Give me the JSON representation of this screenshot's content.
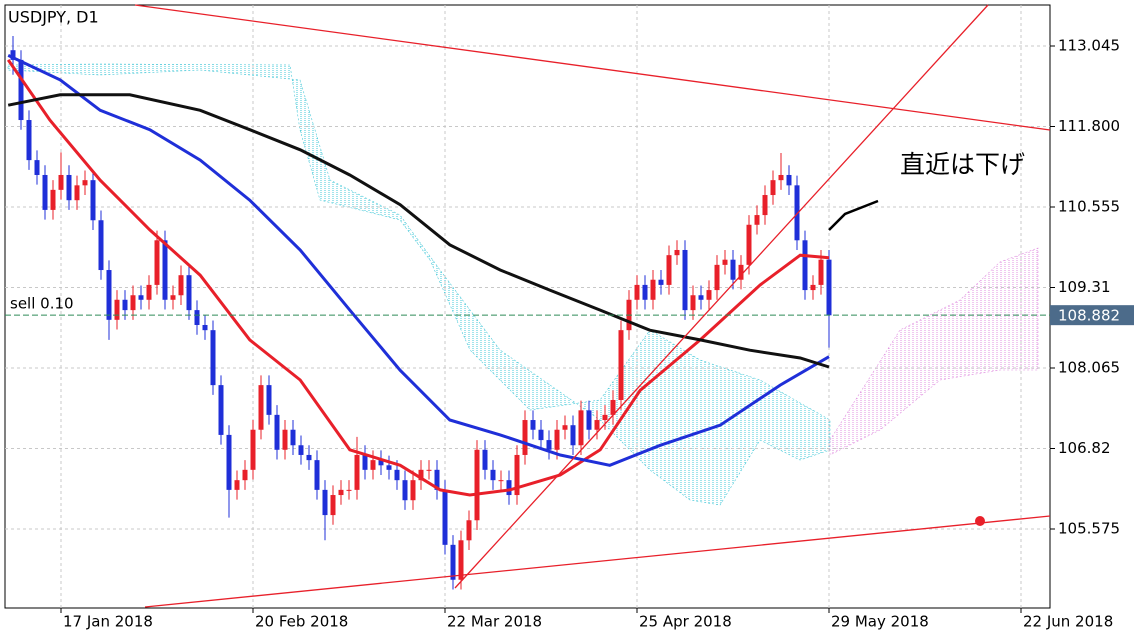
{
  "chart_data": {
    "type": "candlestick",
    "title": "USDJPY, D1",
    "annotation": "直近は下げ",
    "order_label": "sell 0.10",
    "current_price": 108.882,
    "up_color": "#e8202a",
    "down_color": "#1f2fd8",
    "grid": true,
    "xlim": [
      -1,
      129.625
    ],
    "xticks": [
      {
        "value": 6,
        "label": "17 Jan 2018"
      },
      {
        "value": 30,
        "label": "20 Feb 2018"
      },
      {
        "value": 54,
        "label": "22 Mar 2018"
      },
      {
        "value": 78,
        "label": "25 Apr 2018"
      },
      {
        "value": 102,
        "label": "29 May 2018"
      },
      {
        "value": 126,
        "label": "22 Jun 2018"
      }
    ],
    "ylim": [
      104.353,
      113.679
    ],
    "yticks": [
      113.045,
      {
        "value": 111.8,
        "label": "111.800"
      },
      110.555,
      109.31,
      108.065,
      106.82,
      105.575
    ],
    "open": [
      112.98,
      112.83,
      111.9,
      111.28,
      111.05,
      110.51,
      110.82,
      111.05,
      110.66,
      110.89,
      110.97,
      110.35,
      109.58,
      108.81,
      109.12,
      108.96,
      109.19,
      109.12,
      109.35,
      110.04,
      109.12,
      109.19,
      109.5,
      108.96,
      108.73,
      108.65,
      107.8,
      107.03,
      106.18,
      106.33,
      106.49,
      107.11,
      107.8,
      107.34,
      106.8,
      107.11,
      106.87,
      106.72,
      106.64,
      106.18,
      105.79,
      106.1,
      106.18,
      106.18,
      106.72,
      106.49,
      106.64,
      106.56,
      106.49,
      106.33,
      106.02,
      106.33,
      106.49,
      106.49,
      106.18,
      105.33,
      104.79,
      105.4,
      105.71,
      106.8,
      106.49,
      106.33,
      106.33,
      106.1,
      106.72,
      107.26,
      107.11,
      106.95,
      106.8,
      107.11,
      107.18,
      106.87,
      107.41,
      107.11,
      107.26,
      107.34,
      107.57,
      108.65,
      109.12,
      109.35,
      109.12,
      109.43,
      109.35,
      109.81,
      109.89,
      108.96,
      109.19,
      109.12,
      109.27,
      109.66,
      109.74,
      109.43,
      109.66,
      110.28,
      110.43,
      110.74,
      110.97,
      111.05,
      110.89,
      110.04,
      109.27,
      109.35,
      109.74
    ],
    "high": [
      113.2,
      112.98,
      112.05,
      111.43,
      111.2,
      110.97,
      111.4,
      111.2,
      111.04,
      111.12,
      111.12,
      110.5,
      109.73,
      109.27,
      109.27,
      109.34,
      109.34,
      109.5,
      110.19,
      110.19,
      109.34,
      109.65,
      109.65,
      109.11,
      108.88,
      108.8,
      107.95,
      107.18,
      106.48,
      106.64,
      107.26,
      107.95,
      107.95,
      107.49,
      107.26,
      107.26,
      107.02,
      106.87,
      106.79,
      106.33,
      106.25,
      106.33,
      106.33,
      107.0,
      106.87,
      106.79,
      106.79,
      106.71,
      106.64,
      106.48,
      106.48,
      106.64,
      106.64,
      106.64,
      106.33,
      105.48,
      105.55,
      105.86,
      106.95,
      106.95,
      106.64,
      106.48,
      106.48,
      106.87,
      107.41,
      107.41,
      107.26,
      107.1,
      107.26,
      107.33,
      107.33,
      107.56,
      107.56,
      107.41,
      107.49,
      107.72,
      108.8,
      109.27,
      109.5,
      109.5,
      109.58,
      109.58,
      109.96,
      110.04,
      110.04,
      109.34,
      109.34,
      109.42,
      109.81,
      109.89,
      109.89,
      109.81,
      110.43,
      110.58,
      110.89,
      111.12,
      111.39,
      111.2,
      111.04,
      110.19,
      109.5,
      109.89,
      109.89
    ],
    "low": [
      112.6,
      111.75,
      111.13,
      110.9,
      110.36,
      110.36,
      110.67,
      110.51,
      110.51,
      110.74,
      110.2,
      109.43,
      108.5,
      108.66,
      108.81,
      108.81,
      108.97,
      108.97,
      109.2,
      108.97,
      108.97,
      109.04,
      108.81,
      108.58,
      108.5,
      107.65,
      106.88,
      105.75,
      106.03,
      106.18,
      106.34,
      106.96,
      107.19,
      106.65,
      106.65,
      106.72,
      106.57,
      106.49,
      106.03,
      105.4,
      105.64,
      105.95,
      106.03,
      106.03,
      106.34,
      106.34,
      106.41,
      106.34,
      106.18,
      105.87,
      105.87,
      106.18,
      106.34,
      106.03,
      105.18,
      104.64,
      104.64,
      105.25,
      105.56,
      106.34,
      106.18,
      106.18,
      105.95,
      105.95,
      106.57,
      106.96,
      106.8,
      106.65,
      106.65,
      106.96,
      106.72,
      106.72,
      106.96,
      106.96,
      107.11,
      107.19,
      107.42,
      108.5,
      108.97,
      108.97,
      108.97,
      109.2,
      109.2,
      109.66,
      108.81,
      108.81,
      108.97,
      108.97,
      109.12,
      109.51,
      109.28,
      109.28,
      109.51,
      110.13,
      110.28,
      110.59,
      110.82,
      110.74,
      109.89,
      109.12,
      109.12,
      109.2,
      108.38
    ],
    "close": [
      112.83,
      111.9,
      111.28,
      111.05,
      110.51,
      110.82,
      111.05,
      110.66,
      110.89,
      110.97,
      110.35,
      109.58,
      108.81,
      109.12,
      108.96,
      109.19,
      109.12,
      109.35,
      110.04,
      109.12,
      109.19,
      109.5,
      108.96,
      108.73,
      108.65,
      107.8,
      107.03,
      106.18,
      106.33,
      106.49,
      107.11,
      107.8,
      107.34,
      106.8,
      107.11,
      106.87,
      106.72,
      106.64,
      106.18,
      105.79,
      106.1,
      106.18,
      106.18,
      106.72,
      106.49,
      106.64,
      106.56,
      106.49,
      106.33,
      106.02,
      106.33,
      106.49,
      106.49,
      106.18,
      105.33,
      104.79,
      105.4,
      105.71,
      106.8,
      106.49,
      106.33,
      106.33,
      106.1,
      106.72,
      107.26,
      107.11,
      106.95,
      106.8,
      107.11,
      107.18,
      106.87,
      107.41,
      107.11,
      107.26,
      107.34,
      107.57,
      108.65,
      109.12,
      109.35,
      109.12,
      109.43,
      109.35,
      109.81,
      109.89,
      108.96,
      109.19,
      109.12,
      109.27,
      109.66,
      109.74,
      109.43,
      109.66,
      110.28,
      110.43,
      110.74,
      110.97,
      111.05,
      110.89,
      110.04,
      109.27,
      109.35,
      109.74,
      108.88
    ],
    "overlays": [
      {
        "color": "#e8202a",
        "x": [
          -0.6,
          4.6,
          10.9,
          17.1,
          23.4,
          29.6,
          35.9,
          42.1,
          48.4,
          53.4,
          57.1,
          62.1,
          68.4,
          73.4,
          78.4,
          85.9,
          93.4,
          98.4,
          102
        ],
        "values": [
          112.83,
          111.9,
          110.97,
          110.2,
          109.5,
          108.5,
          107.88,
          106.8,
          106.56,
          106.18,
          106.1,
          106.18,
          106.41,
          106.8,
          107.72,
          108.5,
          109.35,
          109.81,
          109.77
        ]
      },
      {
        "color": "#1f2fd8",
        "x": [
          -0.6,
          5.9,
          10.9,
          17.1,
          23.4,
          29.6,
          35.9,
          42.1,
          48.4,
          54.6,
          60.9,
          68.4,
          74.6,
          80.9,
          88.4,
          95.9,
          102
        ],
        "values": [
          112.9,
          112.52,
          112.05,
          111.75,
          111.28,
          110.66,
          109.89,
          108.96,
          108.03,
          107.26,
          107.03,
          106.72,
          106.56,
          106.87,
          107.18,
          107.8,
          108.24
        ]
      },
      {
        "color": "#111111",
        "x": [
          -0.6,
          5.9,
          14.6,
          23.4,
          29.6,
          35.9,
          42.1,
          48.4,
          54.6,
          60.9,
          67.1,
          73.4,
          79.6,
          85.9,
          92.1,
          98.4,
          102
        ],
        "values": [
          112.13,
          112.29,
          112.29,
          112.05,
          111.75,
          111.44,
          111.05,
          110.59,
          109.97,
          109.58,
          109.27,
          108.96,
          108.65,
          108.5,
          108.34,
          108.22,
          108.08
        ]
      }
    ]
  }
}
